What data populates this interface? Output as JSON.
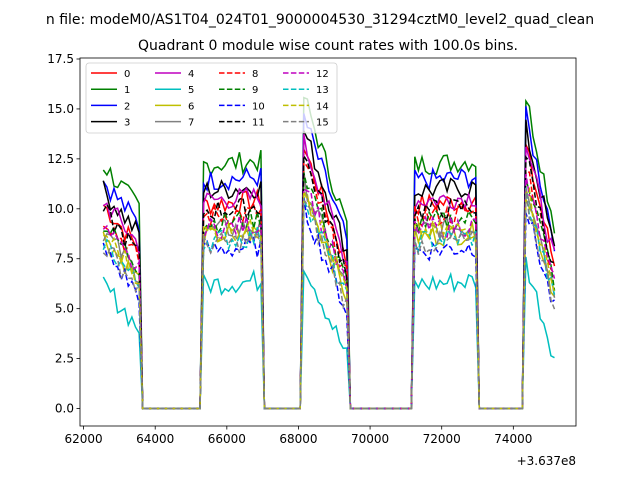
{
  "suptitle": "n file: modeM0/AS1T04_024T01_9000004530_31294cztM0_level2_quad_clean",
  "chart_data": {
    "type": "line",
    "title": "Quadrant 0 module wise count rates with 100.0s bins.",
    "xlabel": "",
    "ylabel": "",
    "x_offset_label": "+3.637e8",
    "xlim": [
      61900,
      75750
    ],
    "ylim": [
      -0.875,
      17.55
    ],
    "x_ticks": [
      62000,
      64000,
      66000,
      68000,
      70000,
      72000,
      74000
    ],
    "y_ticks": [
      0.0,
      2.5,
      5.0,
      7.5,
      10.0,
      12.5,
      15.0,
      17.5
    ],
    "grid": false,
    "legend_position": "upper-left",
    "legend_columns": 4,
    "segments": [
      {
        "start": 62550,
        "end": 63550,
        "decline": 2.2
      },
      {
        "start": 65350,
        "end": 66950,
        "decline": -0.2
      },
      {
        "start": 68150,
        "end": 69350,
        "decline": 3.0
      },
      {
        "start": 71250,
        "end": 72950,
        "decline": -0.2
      },
      {
        "start": 74350,
        "end": 75150,
        "decline": 3.0
      }
    ],
    "gaps_value": 0.0,
    "series": [
      {
        "name": "0",
        "color": "#ff0000",
        "dashed": false,
        "level": 10.2
      },
      {
        "name": "1",
        "color": "#008000",
        "dashed": false,
        "level": 12.2
      },
      {
        "name": "2",
        "color": "#0000ff",
        "dashed": false,
        "level": 11.4
      },
      {
        "name": "3",
        "color": "#000000",
        "dashed": false,
        "level": 10.9
      },
      {
        "name": "4",
        "color": "#bf00bf",
        "dashed": false,
        "level": 10.4
      },
      {
        "name": "5",
        "color": "#00bfbf",
        "dashed": false,
        "level": 6.2
      },
      {
        "name": "6",
        "color": "#bfbf00",
        "dashed": false,
        "level": 8.6
      },
      {
        "name": "7",
        "color": "#808080",
        "dashed": false,
        "level": 8.9
      },
      {
        "name": "8",
        "color": "#ff0000",
        "dashed": true,
        "level": 9.6
      },
      {
        "name": "9",
        "color": "#008000",
        "dashed": true,
        "level": 9.3
      },
      {
        "name": "10",
        "color": "#0000ff",
        "dashed": true,
        "level": 7.9
      },
      {
        "name": "11",
        "color": "#000000",
        "dashed": true,
        "level": 9.9
      },
      {
        "name": "12",
        "color": "#bf00bf",
        "dashed": true,
        "level": 9.0
      },
      {
        "name": "13",
        "color": "#00bfbf",
        "dashed": true,
        "level": 8.4
      },
      {
        "name": "14",
        "color": "#bfbf00",
        "dashed": true,
        "level": 8.8
      },
      {
        "name": "15",
        "color": "#808080",
        "dashed": true,
        "level": 8.2
      }
    ]
  }
}
